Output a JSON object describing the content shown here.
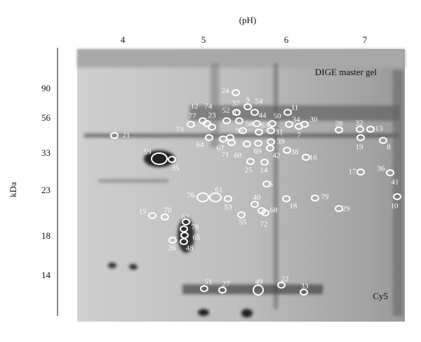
{
  "axis": {
    "x_label": "(pH)",
    "x_ticks": [
      "4",
      "5",
      "6",
      "7"
    ],
    "y_label": "kDa",
    "y_ticks": [
      "90",
      "56",
      "33",
      "23",
      "18",
      "14"
    ]
  },
  "gel": {
    "title": "DIGE master gel",
    "channel": "Cy5"
  },
  "spots": [
    "24",
    "9",
    "54",
    "37",
    "11",
    "12",
    "74",
    "52",
    "47",
    "44",
    "50",
    "30",
    "34",
    "28",
    "32",
    "13",
    "77",
    "23",
    "58",
    "63",
    "73",
    "56",
    "31",
    "7",
    "21",
    "19",
    "8",
    "64",
    "67",
    "39",
    "71",
    "60",
    "69",
    "42",
    "38",
    "16",
    "59",
    "35",
    "25",
    "14",
    "17",
    "36",
    "41",
    "6",
    "76",
    "61",
    "40",
    "79",
    "53",
    "18",
    "10",
    "29",
    "15",
    "70",
    "68",
    "62",
    "55",
    "72",
    "78",
    "65",
    "26",
    "48",
    "51",
    "27",
    "49",
    "22",
    "33"
  ]
}
